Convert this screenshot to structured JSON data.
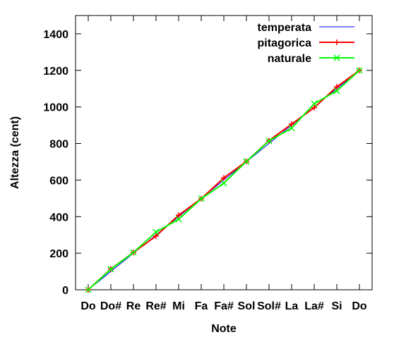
{
  "chart_data": {
    "type": "line",
    "title": "",
    "xlabel": "Note",
    "ylabel": "Altezza (cent)",
    "categories": [
      "Do",
      "Do#",
      "Re",
      "Re#",
      "Mi",
      "Fa",
      "Fa#",
      "Sol",
      "Sol#",
      "La",
      "La#",
      "Si",
      "Do"
    ],
    "ylim": [
      0,
      1500
    ],
    "yticks": [
      0,
      200,
      400,
      600,
      800,
      1000,
      1200,
      1400
    ],
    "grid": false,
    "legend_position": "top-right",
    "series": [
      {
        "name": "temperata",
        "color": "#0000ff",
        "marker": "none",
        "values": [
          0,
          100,
          200,
          300,
          400,
          500,
          600,
          700,
          800,
          900,
          1000,
          1100,
          1200
        ]
      },
      {
        "name": "pitagorica",
        "color": "#ff0000",
        "marker": "plus",
        "values": [
          0,
          114,
          204,
          294,
          408,
          498,
          612,
          702,
          816,
          906,
          996,
          1110,
          1200
        ]
      },
      {
        "name": "naturale",
        "color": "#00ff00",
        "marker": "x",
        "values": [
          0,
          112,
          204,
          316,
          386,
          498,
          583,
          702,
          814,
          884,
          1018,
          1088,
          1200
        ]
      }
    ]
  }
}
